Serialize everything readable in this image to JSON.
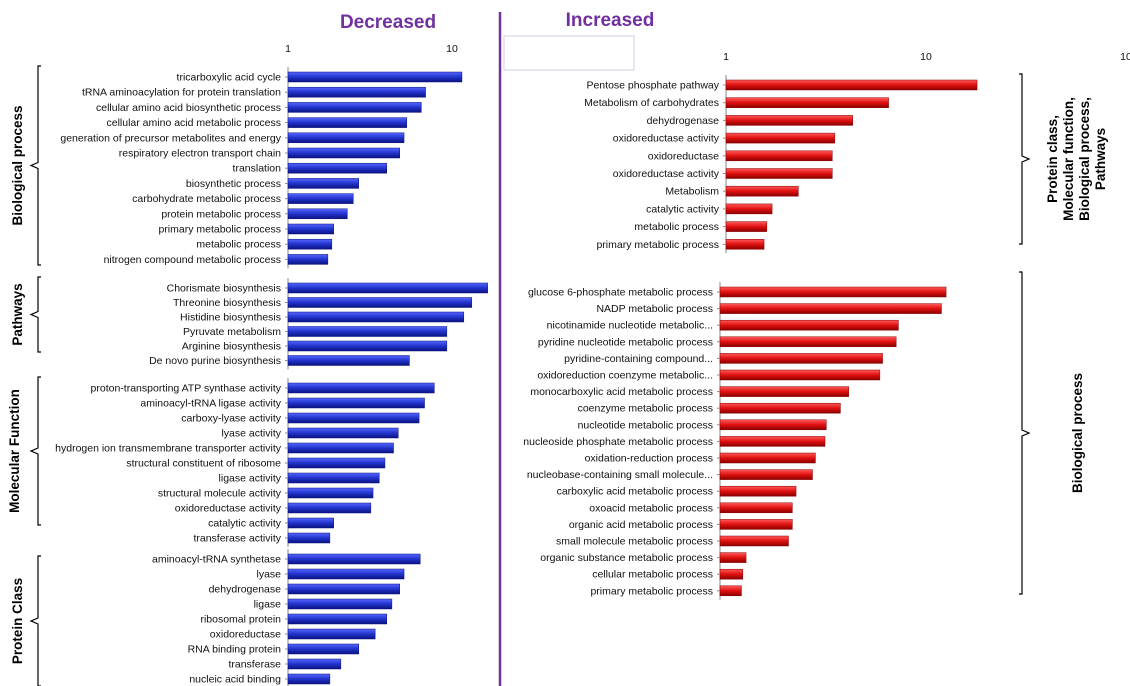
{
  "headers": {
    "left": "Decreased",
    "right": "Increased"
  },
  "colors": {
    "decreased": "#2233cc",
    "increased": "#e01010",
    "divider": "#7030a0"
  },
  "chart_data": [
    {
      "type": "bar",
      "orientation": "horizontal",
      "scale": "log",
      "side": "decreased",
      "xticks": [
        "1",
        "10"
      ],
      "xlim": [
        1,
        16.5
      ],
      "groups": [
        {
          "name": "Biological process",
          "categories": [
            "tricarboxylic acid cycle",
            "tRNA aminoacylation for protein translation",
            "cellular amino acid biosynthetic process",
            "cellular amino acid metabolic process",
            "generation of precursor metabolites and energy",
            "respiratory electron transport chain",
            "translation",
            "biosynthetic process",
            "carbohydrate metabolic process",
            "protein metabolic process",
            "primary metabolic process",
            "metabolic process",
            "nitrogen compound metabolic process"
          ],
          "values": [
            11.5,
            6.9,
            6.5,
            5.3,
            5.1,
            4.8,
            4.0,
            2.7,
            2.5,
            2.3,
            1.9,
            1.85,
            1.75
          ]
        },
        {
          "name": "Pathways",
          "categories": [
            "Chorismate biosynthesis",
            "Threonine biosynthesis",
            "Histidine biosynthesis",
            "Pyruvate metabolism",
            "Arginine biosynthesis",
            "De novo purine biosynthesis"
          ],
          "values": [
            16.5,
            13.2,
            11.8,
            9.3,
            9.3,
            5.5
          ]
        },
        {
          "name": "Molecular Function",
          "categories": [
            "proton-transporting ATP synthase activity",
            "aminoacyl-tRNA ligase activity",
            "carboxy-lyase activity",
            "lyase activity",
            "hydrogen ion transmembrane transporter activity",
            "structural constituent of ribosome",
            "ligase activity",
            "structural molecule activity",
            "oxidoreductase activity",
            "catalytic activity",
            "transferase activity"
          ],
          "values": [
            7.8,
            6.8,
            6.3,
            4.7,
            4.4,
            3.9,
            3.6,
            3.3,
            3.2,
            1.9,
            1.8
          ]
        },
        {
          "name": "Protein Class",
          "categories": [
            "aminoacyl-tRNA synthetase",
            "lyase",
            "dehydrogenase",
            "ligase",
            "ribosomal protein",
            "oxidoreductase",
            "RNA binding protein",
            "transferase",
            "nucleic acid binding"
          ],
          "values": [
            6.4,
            5.1,
            4.8,
            4.3,
            4.0,
            3.4,
            2.7,
            2.1,
            1.8
          ]
        }
      ]
    },
    {
      "type": "bar",
      "orientation": "horizontal",
      "scale": "log",
      "side": "increased",
      "xticks": [
        "1",
        "10",
        "10"
      ],
      "xlim": [
        1,
        100
      ],
      "groups": [
        {
          "name": "Protein class, Molecular function, Biological process, Pathways",
          "categories": [
            "Pentose phosphate pathway",
            "Metabolism of carbohydrates",
            "dehydrogenase",
            "oxidoreductase activity",
            "oxidoreductase",
            "oxidoreductase activity",
            "Metabolism",
            "catalytic activity",
            "metabolic process",
            "primary metabolic process"
          ],
          "values": [
            18.0,
            6.5,
            4.3,
            3.5,
            3.4,
            3.4,
            2.3,
            1.7,
            1.6,
            1.55
          ]
        },
        {
          "name": "Biological process",
          "categories": [
            "glucose 6-phosphate metabolic process",
            "NADP metabolic process",
            "nicotinamide nucleotide metabolic...",
            "pyridine nucleotide metabolic process",
            "pyridine-containing compound...",
            "oxidoreduction coenzyme metabolic...",
            "monocarboxylic acid metabolic process",
            "coenzyme metabolic process",
            "nucleotide metabolic process",
            "nucleoside phosphate metabolic process",
            "oxidation-reduction process",
            "nucleobase-containing small molecule...",
            "carboxylic acid metabolic process",
            "oxoacid metabolic process",
            "organic acid metabolic process",
            "small molecule metabolic process",
            "organic substance metabolic process",
            "cellular metabolic process",
            "primary metabolic process"
          ],
          "values": [
            13.5,
            12.8,
            7.8,
            7.6,
            6.5,
            6.3,
            4.4,
            4.0,
            3.4,
            3.35,
            3.0,
            2.9,
            2.4,
            2.3,
            2.3,
            2.2,
            1.35,
            1.3,
            1.28
          ]
        }
      ]
    }
  ]
}
